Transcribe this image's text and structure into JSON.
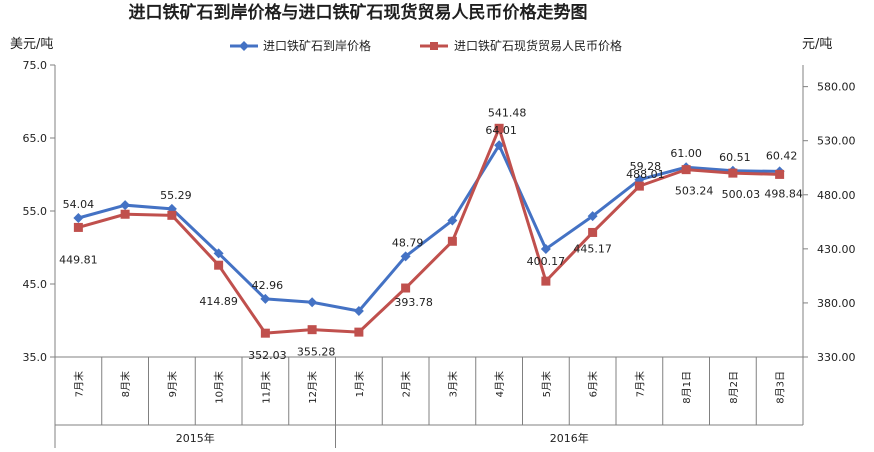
{
  "chart_data": {
    "type": "line",
    "title": "进口铁矿石到岸价格与进口铁矿石现货贸易人民币价格走势图",
    "y_left_label": "美元/吨",
    "y_right_label": "元/吨",
    "y_left_range": [
      35.0,
      75.0
    ],
    "y_left_ticks": [
      "35.0",
      "45.0",
      "55.0",
      "65.0",
      "75.0"
    ],
    "y_right_range": [
      330.0,
      600.0
    ],
    "y_right_ticks": [
      "330.00",
      "380.00",
      "430.00",
      "480.00",
      "530.00",
      "580.00"
    ],
    "categories": [
      "7月末",
      "8月末",
      "9月末",
      "10月末",
      "11月末",
      "12月末",
      "1月末",
      "2月末",
      "3月末",
      "4月末",
      "5月末",
      "6月末",
      "7月末",
      "8月1日",
      "8月2日",
      "8月3日"
    ],
    "year_groups": [
      {
        "label": "2015年",
        "start": 0,
        "end": 5
      },
      {
        "label": "2016年",
        "start": 6,
        "end": 15
      }
    ],
    "legend_position": "top",
    "grid": false,
    "series": [
      {
        "name": "进口铁矿石到岸价格",
        "axis": "left",
        "color": "#4472C4",
        "marker": "diamond",
        "values": [
          54.04,
          55.8,
          55.29,
          49.2,
          42.96,
          42.5,
          41.3,
          48.79,
          53.7,
          64.01,
          49.8,
          54.3,
          59.28,
          61.0,
          60.51,
          60.42
        ],
        "labels": [
          "54.04",
          "",
          "55.29",
          "",
          "42.96",
          "",
          "",
          "48.79",
          "",
          "64.01",
          "",
          "",
          "59.28",
          "61.00",
          "60.51",
          "60.42"
        ]
      },
      {
        "name": "进口铁矿石现货贸易人民币价格",
        "axis": "right",
        "color": "#C0504D",
        "marker": "square",
        "values": [
          449.81,
          462.0,
          461.0,
          414.89,
          352.03,
          355.28,
          353.0,
          393.78,
          437.0,
          541.48,
          400.17,
          445.17,
          488.01,
          503.24,
          500.03,
          498.84
        ],
        "labels": [
          "449.81",
          "",
          "",
          "414.89",
          "352.03",
          "355.28",
          "",
          "393.78",
          "",
          "541.48",
          "400.17",
          "445.17",
          "488.01",
          "503.24",
          "500.03",
          "498.84"
        ]
      }
    ]
  }
}
